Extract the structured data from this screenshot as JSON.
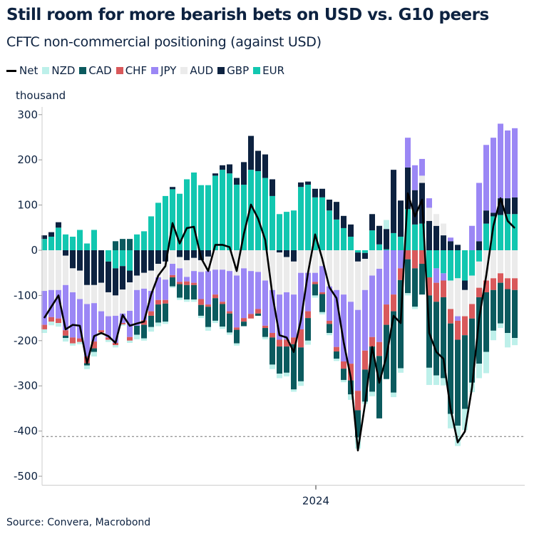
{
  "title": "Still room for more bearish bets on USD vs. G10 peers",
  "subtitle": "CFTC non-commercial positioning (against USD)",
  "unit_label": "thousand",
  "source": "Source: Convera, Macrobond",
  "legend": [
    {
      "name": "Net",
      "type": "line",
      "color": "#000000"
    },
    {
      "name": "NZD",
      "type": "bar",
      "color": "#bdf0ea"
    },
    {
      "name": "CAD",
      "type": "bar",
      "color": "#0b5a5e"
    },
    {
      "name": "CHF",
      "type": "bar",
      "color": "#d9595b"
    },
    {
      "name": "JPY",
      "type": "bar",
      "color": "#9b87f5"
    },
    {
      "name": "AUD",
      "type": "bar",
      "color": "#ebebeb"
    },
    {
      "name": "GBP",
      "type": "bar",
      "color": "#0d2240"
    },
    {
      "name": "EUR",
      "type": "bar",
      "color": "#12c7b0"
    }
  ],
  "chart_data": {
    "type": "bar",
    "stacked": true,
    "title": "Still room for more bearish bets on USD vs. G10 peers",
    "subtitle": "CFTC non-commercial positioning (against USD)",
    "ylabel": "thousand",
    "ylim": [
      -520,
      320
    ],
    "yticks": [
      300,
      200,
      100,
      0,
      -100,
      -200,
      -300,
      -400,
      -500
    ],
    "xtick_labels": [
      {
        "label": "2024",
        "index": 38
      }
    ],
    "reference_line": -412,
    "legend_position": "top",
    "grid": false,
    "stack_order": [
      "EUR",
      "GBP",
      "AUD",
      "JPY",
      "CHF",
      "CAD",
      "NZD"
    ],
    "series": [
      {
        "name": "EUR",
        "values": [
          25,
          30,
          50,
          35,
          30,
          45,
          15,
          45,
          0,
          -25,
          -40,
          -35,
          -45,
          35,
          42,
          75,
          105,
          120,
          135,
          125,
          157,
          172,
          144,
          144,
          165,
          178,
          170,
          145,
          145,
          178,
          175,
          160,
          120,
          80,
          85,
          88,
          140,
          145,
          117,
          117,
          88,
          68,
          49,
          30,
          -5,
          -6,
          44,
          13,
          2,
          38,
          30,
          91,
          57,
          59,
          -60,
          -40,
          -51,
          -67,
          -62,
          -67,
          -56,
          -25,
          59,
          75,
          78,
          80,
          80
        ]
      },
      {
        "name": "GBP",
        "values": [
          8,
          10,
          12,
          -12,
          -40,
          -45,
          -77,
          -77,
          -72,
          -68,
          -60,
          -52,
          -26,
          -56,
          -50,
          -45,
          -30,
          -25,
          5,
          -15,
          -22,
          -17,
          -22,
          -14,
          5,
          10,
          20,
          15,
          50,
          75,
          45,
          52,
          37,
          -5,
          -15,
          -25,
          10,
          7,
          19,
          19,
          24,
          39,
          27,
          27,
          -20,
          -13,
          36,
          41,
          45,
          140,
          80,
          92,
          76,
          90,
          65,
          54,
          33,
          20,
          12,
          -21,
          0,
          20,
          29,
          8,
          37,
          35,
          37
        ]
      },
      {
        "name": "AUD",
        "values": [
          -90,
          -88,
          -88,
          -65,
          -53,
          -63,
          -42,
          -40,
          -63,
          -53,
          -45,
          -53,
          -63,
          -32,
          -35,
          -45,
          -30,
          -40,
          -30,
          -25,
          -37,
          -29,
          -26,
          -32,
          -43,
          -43,
          -46,
          -56,
          -40,
          -46,
          -48,
          -67,
          -88,
          -93,
          -78,
          -73,
          -50,
          -50,
          -50,
          -35,
          -80,
          -88,
          -98,
          -114,
          -107,
          -69,
          -56,
          -41,
          0,
          0,
          0,
          0,
          0,
          16,
          29,
          26,
          26,
          -63,
          -84,
          -58,
          -63,
          -58,
          -67,
          -62,
          -51,
          -62,
          -62
        ]
      },
      {
        "name": "JPY",
        "values": [
          -75,
          -60,
          -63,
          -100,
          -100,
          -87,
          -116,
          -85,
          -42,
          -47,
          -60,
          -21,
          -58,
          -79,
          -70,
          -45,
          -50,
          -45,
          -25,
          -30,
          -10,
          -26,
          -60,
          -74,
          -55,
          -71,
          -89,
          -115,
          -110,
          -95,
          -82,
          -100,
          -95,
          -100,
          -105,
          -95,
          -125,
          -85,
          -20,
          -58,
          -76,
          -126,
          -148,
          -137,
          -179,
          -134,
          -136,
          -162,
          -120,
          -98,
          -40,
          66,
          55,
          37,
          21,
          -32,
          -16,
          8,
          -10,
          0,
          54,
          129,
          145,
          166,
          165,
          150,
          153
        ]
      },
      {
        "name": "CHF",
        "values": [
          -10,
          -10,
          -10,
          -12,
          -13,
          -8,
          -15,
          -15,
          -5,
          -5,
          -5,
          -3,
          -8,
          0,
          -10,
          -10,
          -10,
          -8,
          -5,
          -5,
          -8,
          -5,
          -13,
          -5,
          -8,
          -5,
          -5,
          -5,
          -8,
          -10,
          -10,
          -5,
          -10,
          -15,
          -15,
          -15,
          -40,
          -15,
          -5,
          -4,
          -7,
          -10,
          -16,
          -37,
          -43,
          -42,
          -21,
          -31,
          -45,
          -37,
          -26,
          -20,
          -40,
          -30,
          -40,
          -42,
          -37,
          -32,
          -42,
          -42,
          -32,
          -21,
          -26,
          -26,
          -21,
          -24,
          -26
        ]
      },
      {
        "name": "CAD",
        "values": [
          0,
          0,
          0,
          -5,
          0,
          0,
          -5,
          -8,
          0,
          0,
          20,
          25,
          25,
          -20,
          -30,
          -25,
          -40,
          -40,
          -20,
          -30,
          -32,
          -32,
          -24,
          -45,
          -50,
          -50,
          -42,
          -30,
          -10,
          0,
          -5,
          -20,
          -60,
          -60,
          -58,
          -100,
          -75,
          -50,
          -25,
          -40,
          -20,
          -16,
          -25,
          -31,
          -60,
          -71,
          -100,
          -138,
          -120,
          -180,
          -195,
          -75,
          -85,
          -68,
          -160,
          -163,
          -179,
          -200,
          -190,
          -163,
          -142,
          -147,
          -132,
          -90,
          -90,
          -97,
          -106
        ]
      },
      {
        "name": "NZD",
        "values": [
          -8,
          -8,
          -8,
          -8,
          -5,
          -5,
          -8,
          -10,
          -5,
          -5,
          -5,
          -3,
          -5,
          -10,
          -5,
          -10,
          -8,
          -5,
          -3,
          -5,
          -5,
          -5,
          -5,
          -8,
          -5,
          -5,
          -5,
          -5,
          0,
          0,
          0,
          -5,
          -10,
          -10,
          -8,
          -5,
          -10,
          -9,
          -5,
          -5,
          -5,
          -5,
          -5,
          -12,
          -25,
          -5,
          -10,
          0,
          20,
          -10,
          -10,
          -5,
          -5,
          0,
          -38,
          -21,
          -16,
          -32,
          -45,
          -47,
          -21,
          -32,
          -47,
          -21,
          -10,
          -32,
          -16
        ]
      },
      {
        "name": "Net",
        "type": "line",
        "values": [
          -150,
          -125,
          -100,
          -175,
          -165,
          -167,
          -250,
          -190,
          -183,
          -190,
          -205,
          -143,
          -167,
          -162,
          -158,
          -98,
          -56,
          -35,
          60,
          15,
          49,
          52,
          -17,
          -46,
          12,
          12,
          7,
          -46,
          36,
          101,
          70,
          23,
          -98,
          -188,
          -193,
          -225,
          -155,
          -50,
          35,
          -19,
          -82,
          -106,
          -203,
          -282,
          -443,
          -340,
          -214,
          -293,
          -235,
          -145,
          -161,
          126,
          75,
          112,
          -183,
          -225,
          -240,
          -351,
          -425,
          -401,
          -304,
          -151,
          -56,
          54,
          115,
          65,
          49
        ]
      }
    ]
  }
}
